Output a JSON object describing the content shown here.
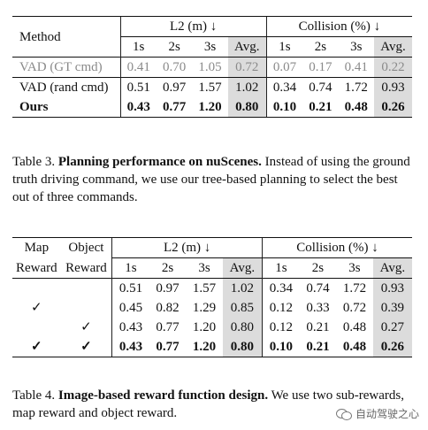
{
  "table3": {
    "header": {
      "method": "Method",
      "l2_group": "L2 (m) ↓",
      "collision_group": "Collision (%) ↓",
      "cols": [
        "1s",
        "2s",
        "3s",
        "Avg.",
        "1s",
        "2s",
        "3s",
        "Avg."
      ]
    },
    "rows": [
      {
        "label": "VAD (GT cmd)",
        "values": [
          "0.41",
          "0.70",
          "1.05",
          "0.72",
          "0.07",
          "0.17",
          "0.41",
          "0.22"
        ]
      },
      {
        "label": "VAD (rand cmd)",
        "values": [
          "0.51",
          "0.97",
          "1.57",
          "1.02",
          "0.34",
          "0.74",
          "1.72",
          "0.93"
        ]
      },
      {
        "label": "Ours",
        "values": [
          "0.43",
          "0.77",
          "1.20",
          "0.80",
          "0.10",
          "0.21",
          "0.48",
          "0.26"
        ]
      }
    ],
    "caption_label": "Table 3.",
    "caption_title": "Planning performance on nuScenes.",
    "caption_text": "Instead of using the ground truth driving command, we use our tree-based planning to select the best out of three commands."
  },
  "table4": {
    "header": {
      "map_top": "Map",
      "map_bottom": "Reward",
      "object_top": "Object",
      "object_bottom": "Reward",
      "l2_group": "L2 (m) ↓",
      "collision_group": "Collision (%) ↓",
      "cols": [
        "1s",
        "2s",
        "3s",
        "Avg.",
        "1s",
        "2s",
        "3s",
        "Avg."
      ]
    },
    "rows": [
      {
        "map": "",
        "object": "",
        "values": [
          "0.51",
          "0.97",
          "1.57",
          "1.02",
          "0.34",
          "0.74",
          "1.72",
          "0.93"
        ]
      },
      {
        "map": "✓",
        "object": "",
        "values": [
          "0.45",
          "0.82",
          "1.29",
          "0.85",
          "0.12",
          "0.33",
          "0.72",
          "0.39"
        ]
      },
      {
        "map": "",
        "object": "✓",
        "values": [
          "0.43",
          "0.77",
          "1.20",
          "0.80",
          "0.12",
          "0.21",
          "0.48",
          "0.27"
        ]
      },
      {
        "map": "✓",
        "object": "✓",
        "values": [
          "0.43",
          "0.77",
          "1.20",
          "0.80",
          "0.10",
          "0.21",
          "0.48",
          "0.26"
        ]
      }
    ],
    "caption_label": "Table 4.",
    "caption_title": "Image-based reward function design.",
    "caption_text": "We use two sub-rewards, map reward and object reward."
  },
  "watermark": {
    "icon": "wechat-icon",
    "text": "自动驾驶之心"
  }
}
